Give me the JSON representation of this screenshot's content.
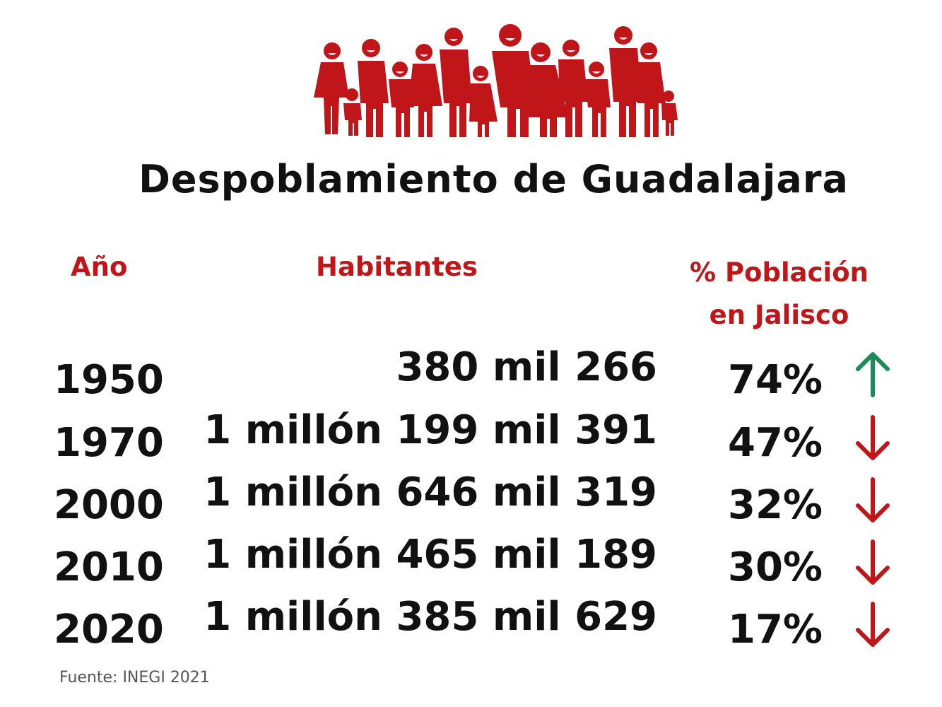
{
  "title": "Despoblamiento de Guadalajara",
  "colors": {
    "accent": "#c0161a",
    "up": "#1d8a5a",
    "down": "#c0161a",
    "text": "#111111"
  },
  "icon": "people-group-icon",
  "chart_data": {
    "type": "table",
    "title": "Despoblamiento de Guadalajara",
    "columns": [
      "Año",
      "Habitantes",
      "% Población en Jalisco"
    ],
    "header_pct_lines": [
      "% Población",
      "en Jalisco"
    ],
    "rows": [
      {
        "year": "1950",
        "habitantes": "380 mil 266",
        "pct": "74%",
        "trend": "up"
      },
      {
        "year": "1970",
        "habitantes": "1 millón 199 mil 391",
        "pct": "47%",
        "trend": "down"
      },
      {
        "year": "2000",
        "habitantes": "1 millón 646 mil 319",
        "pct": "32%",
        "trend": "down"
      },
      {
        "year": "2010",
        "habitantes": "1 millón 465 mil 189",
        "pct": "30%",
        "trend": "down"
      },
      {
        "year": "2020",
        "habitantes": "1 millón 385 mil 629",
        "pct": "17%",
        "trend": "down"
      }
    ]
  },
  "source": "Fuente: INEGI 2021"
}
